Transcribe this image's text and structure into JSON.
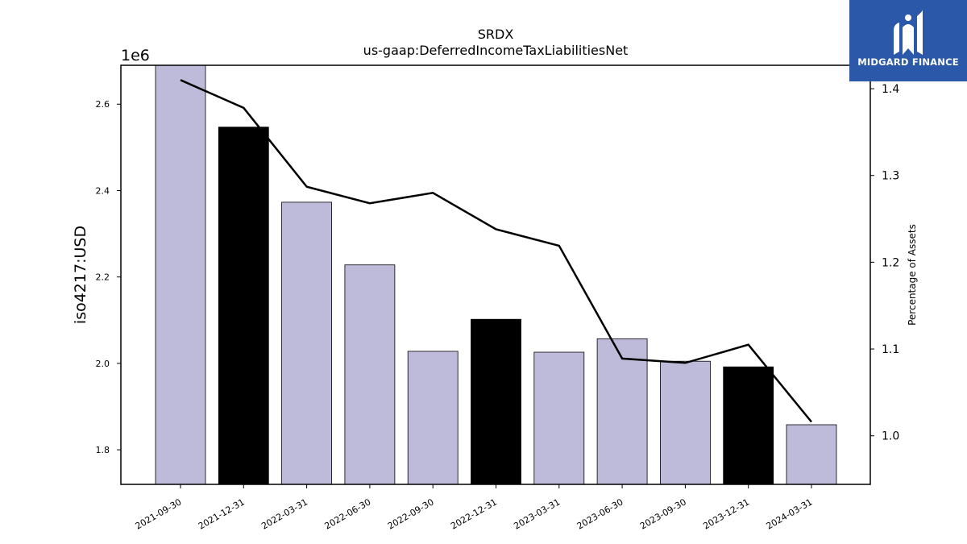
{
  "chart_data": {
    "type": "bar",
    "title": "SRDX",
    "subtitle": "us-gaap:DeferredIncomeTaxLiabilitiesNet",
    "ylabel": "iso4217:USD",
    "y_offset_label": "1e6",
    "y2label": "Percentage of Assets",
    "categories": [
      "2021-09-30",
      "2021-12-31",
      "2022-03-31",
      "2022-06-30",
      "2022-09-30",
      "2022-12-31",
      "2023-03-31",
      "2023-06-30",
      "2023-09-30",
      "2023-12-31",
      "2024-03-31"
    ],
    "values": [
      2690000,
      2547000,
      2373000,
      2228000,
      2028000,
      2102000,
      2026000,
      2057000,
      2005000,
      1992000,
      1858000
    ],
    "bar_colors": [
      "#bebada",
      "#000000",
      "#bebada",
      "#bebada",
      "#bebada",
      "#000000",
      "#bebada",
      "#bebada",
      "#bebada",
      "#000000",
      "#bebada"
    ],
    "line_series": {
      "name": "",
      "axis": "right",
      "values": [
        1.41,
        1.378,
        1.287,
        1.268,
        1.28,
        1.238,
        1.219,
        1.089,
        1.084,
        1.105,
        1.016
      ]
    },
    "ylim": [
      1720000,
      2690000
    ],
    "y_ticks": [
      1800000,
      2000000,
      2200000,
      2400000,
      2600000
    ],
    "y_tick_labels": [
      "1.8",
      "2.0",
      "2.2",
      "2.4",
      "2.6"
    ],
    "y2lim": [
      0.944,
      1.427
    ],
    "y2_ticks": [
      1.0,
      1.1,
      1.2,
      1.3,
      1.4
    ],
    "y2_tick_labels": [
      "1.0",
      "1.1",
      "1.2",
      "1.3",
      "1.4"
    ],
    "grid": false,
    "legend": "none"
  },
  "logo": {
    "text": "MIDGARD FINANCE",
    "bg_color": "#2b58a8"
  }
}
